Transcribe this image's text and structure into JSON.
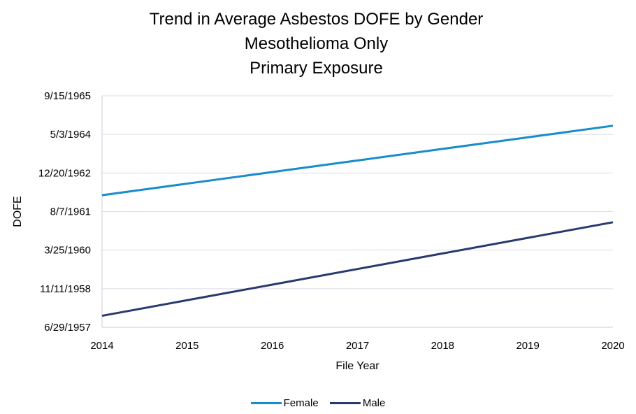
{
  "chart_data": {
    "type": "line",
    "title_lines": [
      "Trend in Average Asbestos DOFE by Gender",
      "Mesothelioma Only",
      "Primary Exposure"
    ],
    "xlabel": "File Year",
    "ylabel": "DOFE",
    "x": [
      2014,
      2015,
      2016,
      2017,
      2018,
      2019,
      2020
    ],
    "x_tick_labels": [
      "2014",
      "2015",
      "2016",
      "2017",
      "2018",
      "2019",
      "2020"
    ],
    "xlim": [
      2014,
      2020
    ],
    "ylim": [
      "1957-06-29",
      "1965-09-15"
    ],
    "y_tick_values": [
      "1957-06-29",
      "1958-11-11",
      "1960-03-25",
      "1961-08-07",
      "1962-12-20",
      "1964-05-03",
      "1965-09-15"
    ],
    "y_tick_labels": [
      "6/29/1957",
      "11/11/1958",
      "3/25/1960",
      "8/7/1961",
      "12/20/1962",
      "5/3/1964",
      "9/15/1965"
    ],
    "grid": true,
    "legend_position": "bottom",
    "series": [
      {
        "name": "Female",
        "color": "#1a8ccc",
        "values": [
          "1962-03-07",
          "1962-08-04",
          "1963-01-01",
          "1963-05-31",
          "1963-10-28",
          "1964-03-26",
          "1964-08-23"
        ]
      },
      {
        "name": "Male",
        "color": "#283a6e",
        "values": [
          "1957-11-25",
          "1958-06-15",
          "1959-01-03",
          "1959-07-24",
          "1960-02-11",
          "1960-08-31",
          "1961-03-21"
        ]
      }
    ]
  }
}
